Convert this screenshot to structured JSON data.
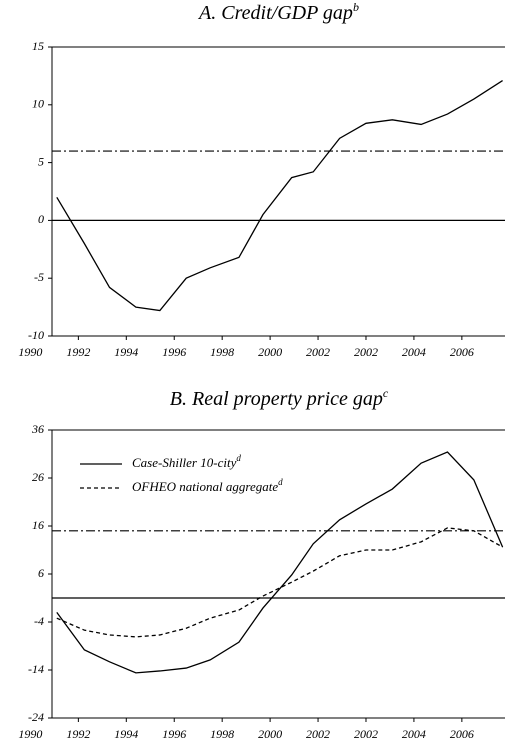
{
  "chart_data": [
    {
      "type": "line",
      "title": "A. Credit/GDP gap",
      "title_superscript": "b",
      "xlim": [
        1990.9,
        2009.8
      ],
      "ylim": [
        -10,
        15
      ],
      "yticks": [
        -10,
        -5,
        0,
        5,
        10,
        15
      ],
      "xticks": [
        1990,
        1992,
        1994,
        1996,
        1998,
        2000,
        2002,
        {
          "value": 2004,
          "label": "2002"
        },
        {
          "value": 2006,
          "label": "2004"
        },
        {
          "value": 2008,
          "label": "2006"
        }
      ],
      "reference_lines": [
        {
          "value": 0,
          "style": "solid"
        },
        {
          "value": 6,
          "style": "dash-dot"
        }
      ],
      "x": [
        1991.1,
        1992.25,
        1993.3,
        1994.4,
        1995.4,
        1996.5,
        1997.5,
        1998.7,
        1999.7,
        2000.9,
        2001.8,
        2002.9,
        2004.0,
        2005.1,
        2006.3,
        2007.4,
        2008.5,
        2009.7
      ],
      "series": [
        {
          "color": "#000000",
          "dash": "solid",
          "values": [
            2,
            -2,
            -5.8,
            -7.5,
            -7.8,
            -5,
            -4.1,
            -3.2,
            0.5,
            3.7,
            4.2,
            7.1,
            8.4,
            8.7,
            8.3,
            9.2,
            10.5,
            12.1
          ]
        }
      ]
    },
    {
      "type": "line",
      "title": "B. Real property price gap",
      "title_superscript": "c",
      "xlim": [
        1990.9,
        2009.8
      ],
      "ylim": [
        -24,
        36
      ],
      "yticks": [
        -24,
        -14,
        -4,
        6,
        16,
        26,
        36
      ],
      "xticks": [
        1990,
        1992,
        1994,
        1996,
        1998,
        2000,
        2002,
        {
          "value": 2004,
          "label": "2002"
        },
        {
          "value": 2006,
          "label": "2004"
        },
        {
          "value": 2008,
          "label": "2006"
        }
      ],
      "reference_lines": [
        {
          "value": 1,
          "style": "solid"
        },
        {
          "value": 15,
          "style": "dash-dot"
        }
      ],
      "legend": "upper left",
      "x": [
        1991.1,
        1992.25,
        1993.3,
        1994.4,
        1995.4,
        1996.5,
        1997.5,
        1998.7,
        1999.7,
        2000.9,
        2001.8,
        2002.9,
        2004.0,
        2005.1,
        2006.3,
        2007.4,
        2008.5,
        2009.7
      ],
      "series": [
        {
          "name": "Case-Shiller 10-city",
          "name_superscript": "d",
          "color": "#000000",
          "dash": "solid",
          "values": [
            -2,
            -9.8,
            -12.3,
            -14.6,
            -14.2,
            -13.6,
            -11.9,
            -8.2,
            -1.1,
            5.8,
            12.3,
            17.3,
            20.6,
            23.7,
            29.1,
            31.4,
            25.6,
            11.6
          ]
        },
        {
          "name": "OFHEO national aggregate",
          "name_superscript": "d",
          "color": "#000000",
          "dash": "dashed",
          "values": [
            -3.2,
            -5.7,
            -6.7,
            -7.1,
            -6.7,
            -5.3,
            -3.2,
            -1.5,
            1.4,
            4.3,
            6.6,
            9.8,
            11,
            11,
            12.7,
            15.6,
            15,
            11.6
          ]
        }
      ]
    }
  ]
}
